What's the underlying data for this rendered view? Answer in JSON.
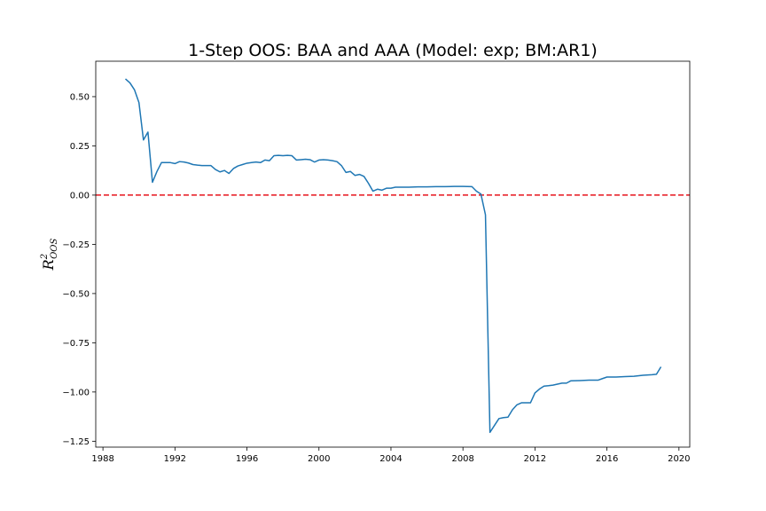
{
  "chart_data": {
    "type": "line",
    "title": "1-Step OOS: BAA and AAA (Model: exp; BM:AR1)",
    "xlabel": "",
    "ylabel": {
      "base": "R",
      "sup": "2",
      "sub": "OOS"
    },
    "xlim": [
      1987.6,
      2020.6
    ],
    "ylim": [
      -1.28,
      0.68
    ],
    "x_ticks": [
      1988,
      1992,
      1996,
      2000,
      2004,
      2008,
      2012,
      2016,
      2020
    ],
    "x_tick_labels": [
      "1988",
      "1992",
      "1996",
      "2000",
      "2004",
      "2008",
      "2012",
      "2016",
      "2020"
    ],
    "y_ticks": [
      0.5,
      0.25,
      0.0,
      -0.25,
      -0.5,
      -0.75,
      -1.0,
      -1.25
    ],
    "y_tick_labels": [
      "0.50",
      "0.25",
      "0.00",
      "−0.25",
      "−0.50",
      "−0.75",
      "−1.00",
      "−1.25"
    ],
    "grid": false,
    "reference_line": {
      "y": 0.0,
      "color": "#e8141c",
      "style": "dashed"
    },
    "series": [
      {
        "color": "#1f77b4",
        "x": [
          1989.25,
          1989.5,
          1989.75,
          1990.0,
          1990.25,
          1990.5,
          1990.75,
          1991.0,
          1991.25,
          1991.5,
          1991.75,
          1992.0,
          1992.25,
          1992.5,
          1992.75,
          1993.0,
          1993.25,
          1993.5,
          1993.75,
          1994.0,
          1994.25,
          1994.5,
          1994.75,
          1995.0,
          1995.25,
          1995.5,
          1995.75,
          1996.0,
          1996.25,
          1996.5,
          1996.75,
          1997.0,
          1997.25,
          1997.5,
          1997.75,
          1998.0,
          1998.25,
          1998.5,
          1998.75,
          1999.0,
          1999.25,
          1999.5,
          1999.75,
          2000.0,
          2000.25,
          2000.5,
          2000.75,
          2001.0,
          2001.25,
          2001.5,
          2001.75,
          2002.0,
          2002.25,
          2002.5,
          2002.75,
          2003.0,
          2003.25,
          2003.5,
          2003.75,
          2004.0,
          2004.25,
          2004.5,
          2004.75,
          2005.0,
          2005.5,
          2006.0,
          2006.5,
          2007.0,
          2007.5,
          2008.0,
          2008.5,
          2008.75,
          2009.0,
          2009.25,
          2009.5,
          2009.75,
          2010.0,
          2010.25,
          2010.5,
          2010.75,
          2011.0,
          2011.25,
          2011.5,
          2011.75,
          2012.0,
          2012.25,
          2012.5,
          2012.75,
          2013.0,
          2013.5,
          2013.75,
          2014.0,
          2014.5,
          2015.0,
          2015.25,
          2015.5,
          2015.75,
          2016.0,
          2016.5,
          2017.0,
          2017.5,
          2018.0,
          2018.5,
          2018.75,
          2019.0
        ],
        "y": [
          0.59,
          0.57,
          0.535,
          0.47,
          0.28,
          0.32,
          0.065,
          0.12,
          0.165,
          0.165,
          0.165,
          0.16,
          0.17,
          0.168,
          0.163,
          0.155,
          0.152,
          0.15,
          0.15,
          0.15,
          0.13,
          0.118,
          0.125,
          0.11,
          0.135,
          0.148,
          0.155,
          0.162,
          0.165,
          0.168,
          0.165,
          0.178,
          0.175,
          0.2,
          0.202,
          0.2,
          0.202,
          0.2,
          0.178,
          0.18,
          0.182,
          0.18,
          0.168,
          0.178,
          0.18,
          0.178,
          0.175,
          0.17,
          0.15,
          0.115,
          0.12,
          0.1,
          0.105,
          0.095,
          0.06,
          0.02,
          0.03,
          0.025,
          0.035,
          0.035,
          0.04,
          0.04,
          0.04,
          0.04,
          0.042,
          0.042,
          0.043,
          0.043,
          0.044,
          0.044,
          0.043,
          0.02,
          0.005,
          -0.1,
          -1.205,
          -1.17,
          -1.135,
          -1.13,
          -1.128,
          -1.09,
          -1.065,
          -1.055,
          -1.055,
          -1.055,
          -1.005,
          -0.985,
          -0.97,
          -0.968,
          -0.965,
          -0.955,
          -0.955,
          -0.943,
          -0.942,
          -0.94,
          -0.94,
          -0.94,
          -0.932,
          -0.924,
          -0.924,
          -0.922,
          -0.92,
          -0.915,
          -0.912,
          -0.91,
          -0.872
        ]
      }
    ]
  }
}
